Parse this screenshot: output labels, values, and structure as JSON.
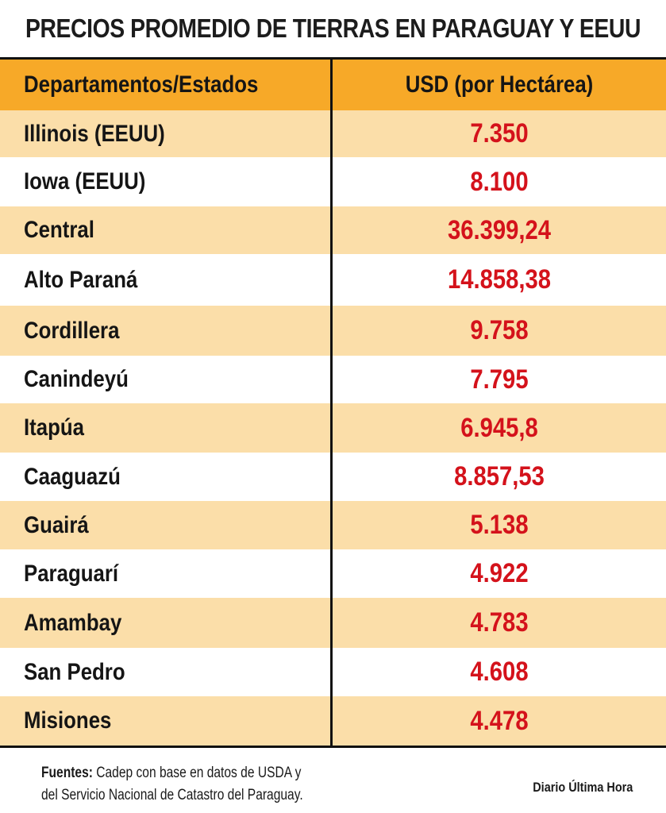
{
  "title": "PRECIOS PROMEDIO DE TIERRAS EN PARAGUAY Y EEUU",
  "chart_data": {
    "type": "table",
    "columns": [
      "Departamentos/Estados",
      "USD (por Hectárea)"
    ],
    "rows": [
      {
        "name": "Illinois (EEUU)",
        "value": "7.350"
      },
      {
        "name": "Iowa (EEUU)",
        "value": "8.100"
      },
      {
        "name": "Central",
        "value": "36.399,24"
      },
      {
        "name": "Alto Paraná",
        "value": "14.858,38"
      },
      {
        "name": "Cordillera",
        "value": "9.758"
      },
      {
        "name": "Canindeyú",
        "value": "7.795"
      },
      {
        "name": "Itapúa",
        "value": "6.945,8"
      },
      {
        "name": "Caaguazú",
        "value": "8.857,53"
      },
      {
        "name": "Guairá",
        "value": "5.138"
      },
      {
        "name": "Paraguarí",
        "value": "4.922"
      },
      {
        "name": "Amambay",
        "value": "4.783"
      },
      {
        "name": "San Pedro",
        "value": "4.608"
      },
      {
        "name": "Misiones",
        "value": "4.478"
      }
    ],
    "colors": {
      "header": "#f7a928",
      "row_alt": "#fbdea9",
      "value_text": "#d4121b"
    }
  },
  "footer": {
    "sources_label": "Fuentes",
    "sources_separator": ":",
    "sources_line1": " Cadep con base en datos de USDA y",
    "sources_line2": "del Servicio Nacional de Catastro del Paraguay.",
    "credit": "Diario Última Hora"
  }
}
